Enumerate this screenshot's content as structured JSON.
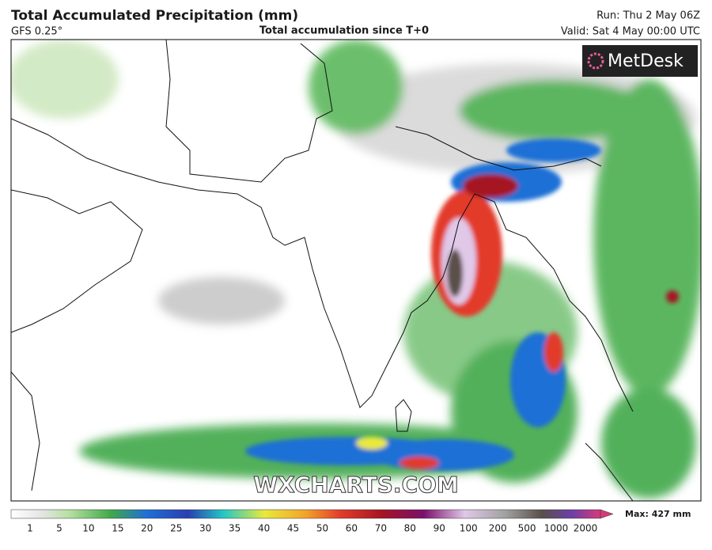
{
  "header": {
    "title": "Total Accumulated Precipitation (mm)",
    "model": "GFS 0.25°",
    "subtitle": "Total accumulation since T+0",
    "run": "Run: Thu 2 May 06Z",
    "valid": "Valid: Sat 4 May 00:00 UTC"
  },
  "map": {
    "logo": "MetDesk",
    "watermark": "WXCHARTS.COM"
  },
  "legend": {
    "ticks": [
      1,
      5,
      10,
      15,
      20,
      25,
      30,
      35,
      40,
      45,
      50,
      60,
      70,
      80,
      90,
      100,
      200,
      500,
      1000,
      2000
    ],
    "max_label": "Max: 427 mm"
  }
}
